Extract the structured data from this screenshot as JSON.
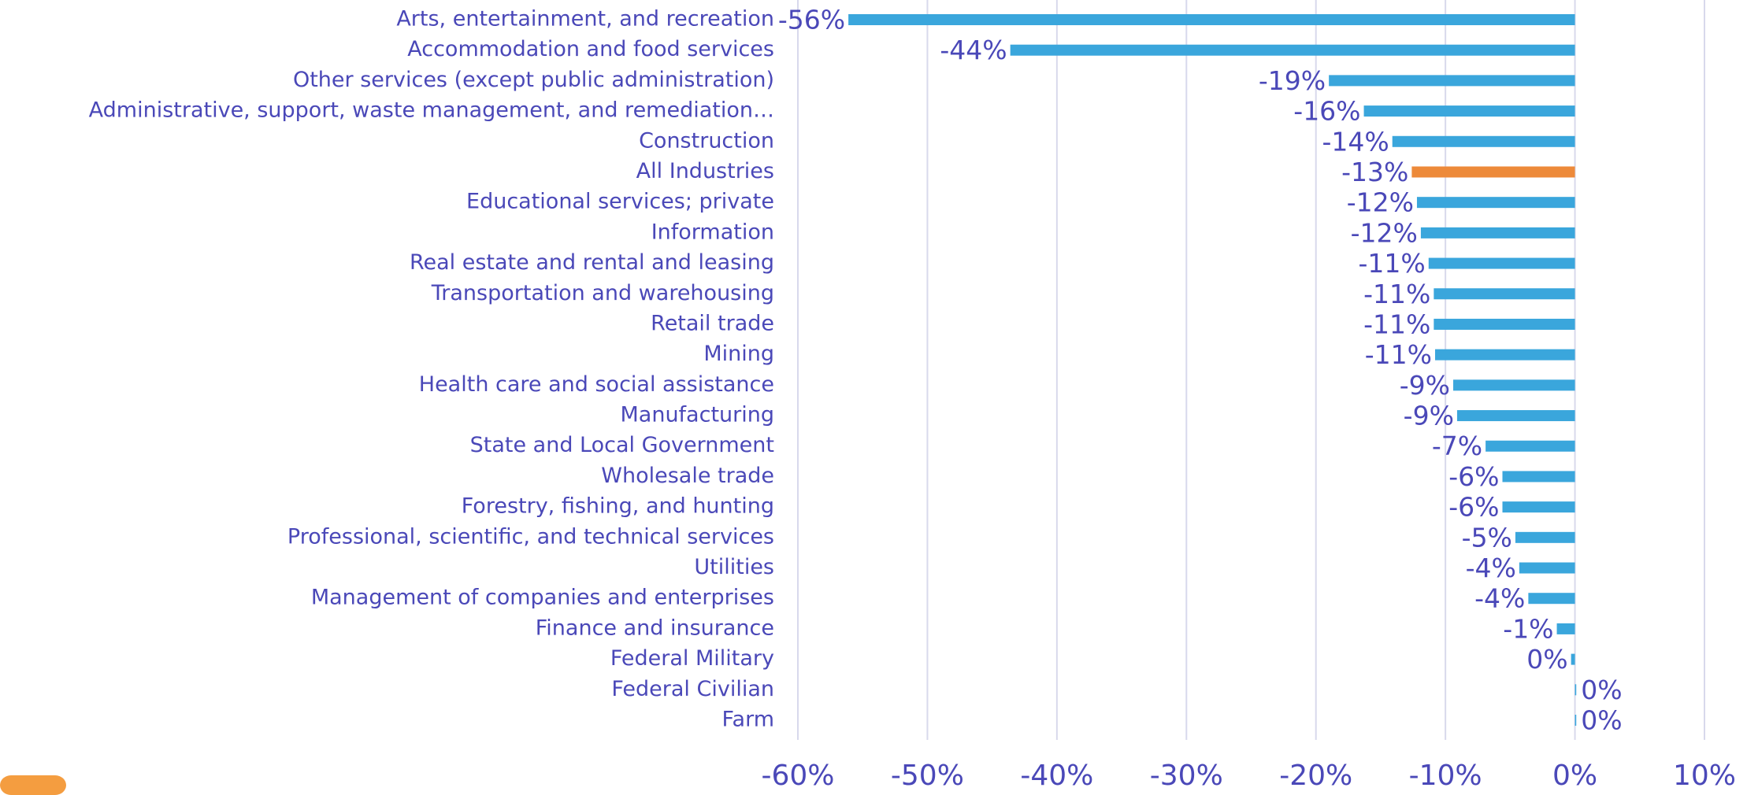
{
  "chart_data": {
    "type": "hbar",
    "categories": [
      "Arts, entertainment, and recreation",
      "Accommodation and food services",
      "Other services (except public administration)",
      "Administrative, support, waste management, and remediation…",
      "Construction",
      "All Industries",
      "Educational services; private",
      "Information",
      "Real estate and rental and leasing",
      "Transportation and warehousing",
      "Retail trade",
      "Mining",
      "Health care and social assistance",
      "Manufacturing",
      "State and Local Government",
      "Wholesale trade",
      "Forestry, fishing, and hunting",
      "Professional, scientific, and technical services",
      "Utilities",
      "Management of companies and enterprises",
      "Finance and insurance",
      "Federal Military",
      "Federal Civilian",
      "Farm"
    ],
    "values": [
      -56.1,
      -43.6,
      -19.0,
      -16.3,
      -14.1,
      -12.6,
      -12.2,
      -11.9,
      -11.3,
      -10.9,
      -10.9,
      -10.8,
      -9.4,
      -9.1,
      -6.9,
      -5.6,
      -5.6,
      -4.6,
      -4.3,
      -3.6,
      -1.4,
      -0.3,
      0.1,
      0.1
    ],
    "value_labels": [
      "-56%",
      "-44%",
      "-19%",
      "-16%",
      "-14%",
      "-13%",
      "-12%",
      "-12%",
      "-11%",
      "-11%",
      "-11%",
      "-11%",
      "-9%",
      "-9%",
      "-7%",
      "-6%",
      "-6%",
      "-5%",
      "-4%",
      "-4%",
      "-1%",
      "0%",
      "0%",
      "0%"
    ],
    "colors": [
      "#3aa6dc",
      "#3aa6dc",
      "#3aa6dc",
      "#3aa6dc",
      "#3aa6dc",
      "#ed8a3a",
      "#3aa6dc",
      "#3aa6dc",
      "#3aa6dc",
      "#3aa6dc",
      "#3aa6dc",
      "#3aa6dc",
      "#3aa6dc",
      "#3aa6dc",
      "#3aa6dc",
      "#3aa6dc",
      "#3aa6dc",
      "#3aa6dc",
      "#3aa6dc",
      "#3aa6dc",
      "#3aa6dc",
      "#3aa6dc",
      "#3aa6dc",
      "#3aa6dc"
    ],
    "xlim": [
      -60,
      10
    ],
    "xticks": [
      {
        "value": -60,
        "label": "-60%"
      },
      {
        "value": -50,
        "label": "-50%"
      },
      {
        "value": -40,
        "label": "-40%"
      },
      {
        "value": -30,
        "label": "-30%"
      },
      {
        "value": -20,
        "label": "-20%"
      },
      {
        "value": -10,
        "label": "-10%"
      },
      {
        "value": 0,
        "label": "0%"
      },
      {
        "value": 10,
        "label": "10%"
      }
    ],
    "grid": true
  }
}
